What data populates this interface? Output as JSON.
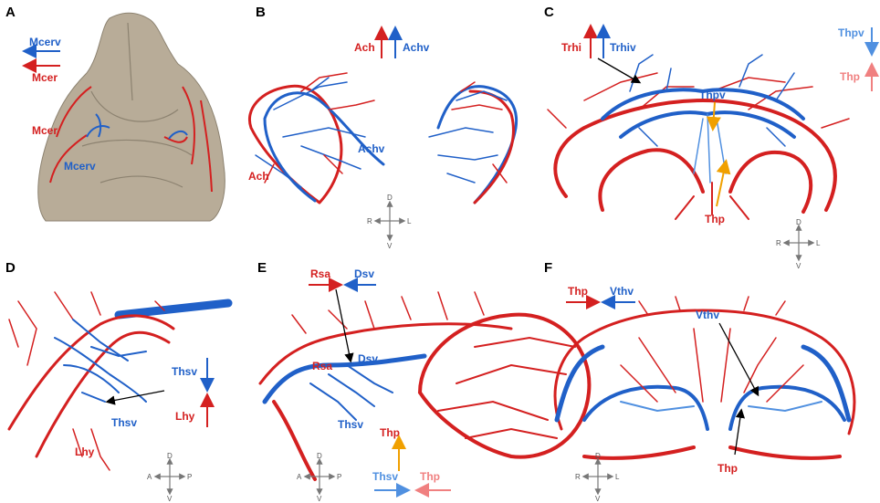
{
  "panels": {
    "A": {
      "letter": "A",
      "legend_blue": "Mcerv",
      "legend_red": "Mcer",
      "label_mcer": "Mcer",
      "label_mcerv": "Mcerv"
    },
    "B": {
      "letter": "B",
      "legend_red": "Ach",
      "legend_blue": "Achv",
      "label_achv": "Achv",
      "label_ach": "Ach",
      "compass": {
        "up": "D",
        "down": "V",
        "left": "R",
        "right": "L"
      }
    },
    "C": {
      "letter": "C",
      "legend_red": "Trhi",
      "legend_blue": "Trhiv",
      "legend_thpv": "Thpv",
      "legend_thp": "Thp",
      "label_thpv": "Thpv",
      "label_thp": "Thp",
      "compass": {
        "up": "D",
        "down": "V",
        "left": "R",
        "right": "L"
      }
    },
    "D": {
      "letter": "D",
      "legend_blue": "Thsv",
      "legend_red": "Lhy",
      "label_thsv": "Thsv",
      "label_lhy": "Lhy",
      "compass": {
        "up": "D",
        "down": "V",
        "left": "A",
        "right": "P"
      }
    },
    "E": {
      "letter": "E",
      "legend_red": "Rsa",
      "legend_blue": "Dsv",
      "label_rsa": "Rsa",
      "label_dsv": "Dsv",
      "label_thsv": "Thsv",
      "label_thp": "Thp",
      "legend_thsv": "Thsv",
      "legend_thp": "Thp",
      "compass": {
        "up": "D",
        "down": "V",
        "left": "A",
        "right": "P"
      }
    },
    "F": {
      "letter": "F",
      "legend_red": "Thp",
      "legend_blue": "Vthv",
      "label_vthv": "Vthv",
      "label_thp": "Thp",
      "compass": {
        "up": "D",
        "down": "V",
        "left": "R",
        "right": "L"
      }
    }
  },
  "colors": {
    "artery": "#d42020",
    "vein": "#2060c8",
    "artery_light": "#f08080",
    "vein_light": "#5090e0",
    "skull": "#b8ac98",
    "pointer_orange": "#f0a000"
  }
}
